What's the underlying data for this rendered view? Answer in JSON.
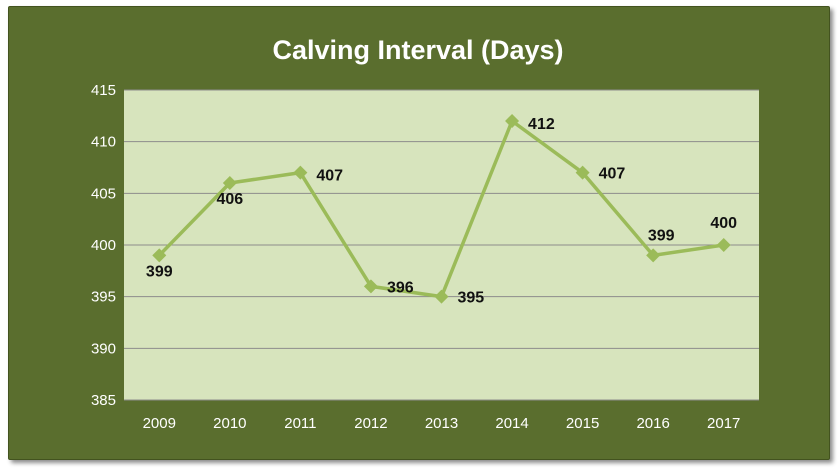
{
  "chart_data": {
    "type": "line",
    "title": "Calving Interval (Days)",
    "xlabel": "",
    "ylabel": "",
    "categories": [
      "2009",
      "2010",
      "2011",
      "2012",
      "2013",
      "2014",
      "2015",
      "2016",
      "2017"
    ],
    "series": [
      {
        "values": [
          399,
          406,
          407,
          396,
          395,
          412,
          407,
          399,
          400
        ]
      }
    ],
    "ylim": [
      385,
      415
    ],
    "yticks": [
      385,
      390,
      395,
      400,
      405,
      410,
      415
    ],
    "grid": true,
    "legend": "none",
    "colors": {
      "frame": "#5a6e2e",
      "plot_area": "#d7e4bd",
      "line": "#9bbb59",
      "gridline": "#8c8c8c",
      "axis_text": "#ffffff",
      "data_label": "#111111"
    }
  }
}
